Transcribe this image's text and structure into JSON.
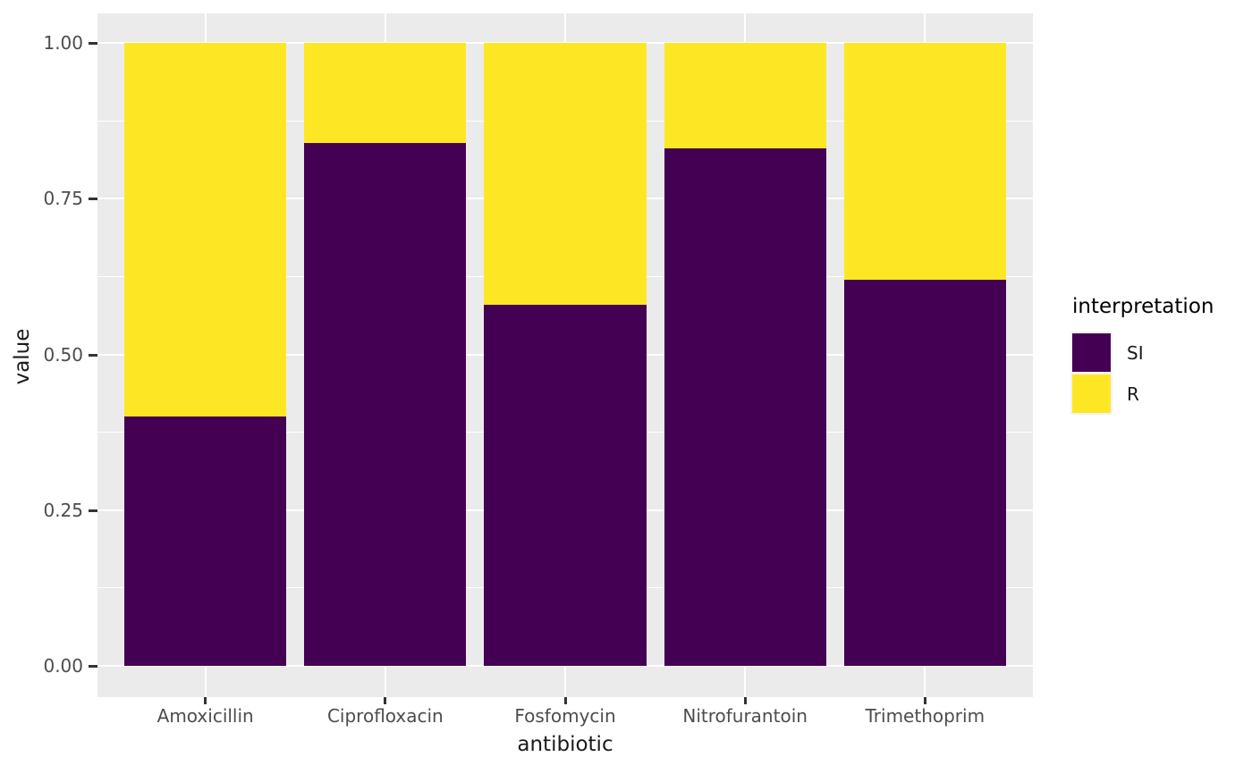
{
  "chart_data": {
    "type": "bar",
    "stacked": true,
    "title": "",
    "xlabel": "antibiotic",
    "ylabel": "value",
    "categories": [
      "Amoxicillin",
      "Ciprofloxacin",
      "Fosfomycin",
      "Nitrofurantoin",
      "Trimethoprim"
    ],
    "series": [
      {
        "name": "SI",
        "color": "#440154",
        "values": [
          0.4,
          0.84,
          0.58,
          0.83,
          0.62
        ]
      },
      {
        "name": "R",
        "color": "#FDE725",
        "values": [
          0.6,
          0.16,
          0.42,
          0.17,
          0.38
        ]
      }
    ],
    "ylim": [
      0,
      1
    ],
    "yticks": [
      0,
      0.25,
      0.5,
      0.75,
      1
    ],
    "ytick_labels": [
      "0.00",
      "0.25",
      "0.50",
      "0.75",
      "1.00"
    ],
    "yticks_minor": [
      0.125,
      0.375,
      0.625,
      0.875
    ],
    "legend": {
      "title": "interpretation",
      "position": "right",
      "entries": [
        {
          "label": "SI",
          "color": "#440154"
        },
        {
          "label": "R",
          "color": "#FDE725"
        }
      ]
    },
    "grid": true,
    "style": {
      "panel_bg": "#EBEBEB",
      "grid_color": "#FFFFFF",
      "axis_text_color": "#4D4D4D",
      "axis_title_color": "#1a1a1a",
      "tick_color": "#333333",
      "background": "#FFFFFF"
    }
  }
}
